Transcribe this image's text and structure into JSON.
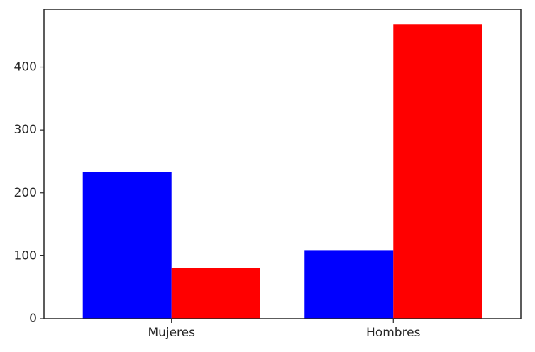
{
  "chart_data": {
    "type": "bar",
    "categories": [
      "Mujeres",
      "Hombres"
    ],
    "series": [
      {
        "color": "#0000ff",
        "values": [
          233,
          109
        ]
      },
      {
        "color": "#ff0000",
        "values": [
          81,
          468
        ]
      }
    ],
    "ylim": [
      0,
      492
    ],
    "yticks": [
      0,
      100,
      200,
      300,
      400
    ],
    "grid": false,
    "legend": "none"
  }
}
